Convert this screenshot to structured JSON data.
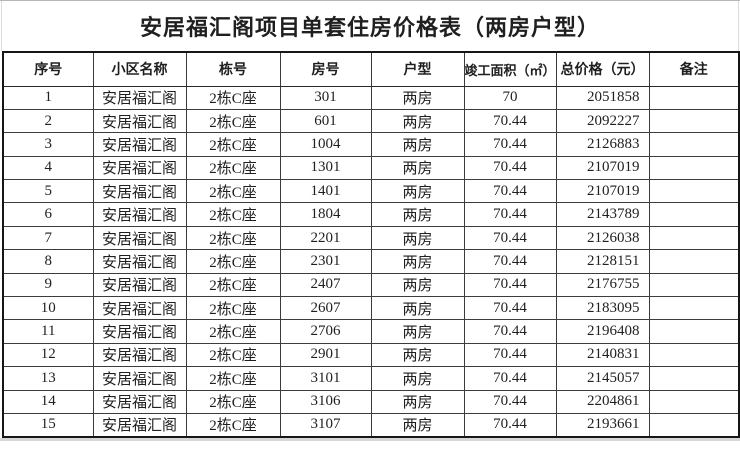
{
  "title": "安居福汇阁项目单套住房价格表（两房户型）",
  "table": {
    "headers": [
      "序号",
      "小区名称",
      "栋号",
      "房号",
      "户型",
      "竣工面积（㎡）",
      "总价格（元）",
      "备注"
    ],
    "column_keys": [
      "serial",
      "community",
      "building",
      "room",
      "unit-type",
      "area",
      "price",
      "remarks"
    ],
    "rows": [
      [
        "1",
        "安居福汇阁",
        "2栋C座",
        "301",
        "两房",
        "70",
        "2051858",
        ""
      ],
      [
        "2",
        "安居福汇阁",
        "2栋C座",
        "601",
        "两房",
        "70.44",
        "2092227",
        ""
      ],
      [
        "3",
        "安居福汇阁",
        "2栋C座",
        "1004",
        "两房",
        "70.44",
        "2126883",
        ""
      ],
      [
        "4",
        "安居福汇阁",
        "2栋C座",
        "1301",
        "两房",
        "70.44",
        "2107019",
        ""
      ],
      [
        "5",
        "安居福汇阁",
        "2栋C座",
        "1401",
        "两房",
        "70.44",
        "2107019",
        ""
      ],
      [
        "6",
        "安居福汇阁",
        "2栋C座",
        "1804",
        "两房",
        "70.44",
        "2143789",
        ""
      ],
      [
        "7",
        "安居福汇阁",
        "2栋C座",
        "2201",
        "两房",
        "70.44",
        "2126038",
        ""
      ],
      [
        "8",
        "安居福汇阁",
        "2栋C座",
        "2301",
        "两房",
        "70.44",
        "2128151",
        ""
      ],
      [
        "9",
        "安居福汇阁",
        "2栋C座",
        "2407",
        "两房",
        "70.44",
        "2176755",
        ""
      ],
      [
        "10",
        "安居福汇阁",
        "2栋C座",
        "2607",
        "两房",
        "70.44",
        "2183095",
        ""
      ],
      [
        "11",
        "安居福汇阁",
        "2栋C座",
        "2706",
        "两房",
        "70.44",
        "2196408",
        ""
      ],
      [
        "12",
        "安居福汇阁",
        "2栋C座",
        "2901",
        "两房",
        "70.44",
        "2140831",
        ""
      ],
      [
        "13",
        "安居福汇阁",
        "2栋C座",
        "3101",
        "两房",
        "70.44",
        "2145057",
        ""
      ],
      [
        "14",
        "安居福汇阁",
        "2栋C座",
        "3106",
        "两房",
        "70.44",
        "2204861",
        ""
      ],
      [
        "15",
        "安居福汇阁",
        "2栋C座",
        "3107",
        "两房",
        "70.44",
        "2193661",
        ""
      ]
    ]
  }
}
